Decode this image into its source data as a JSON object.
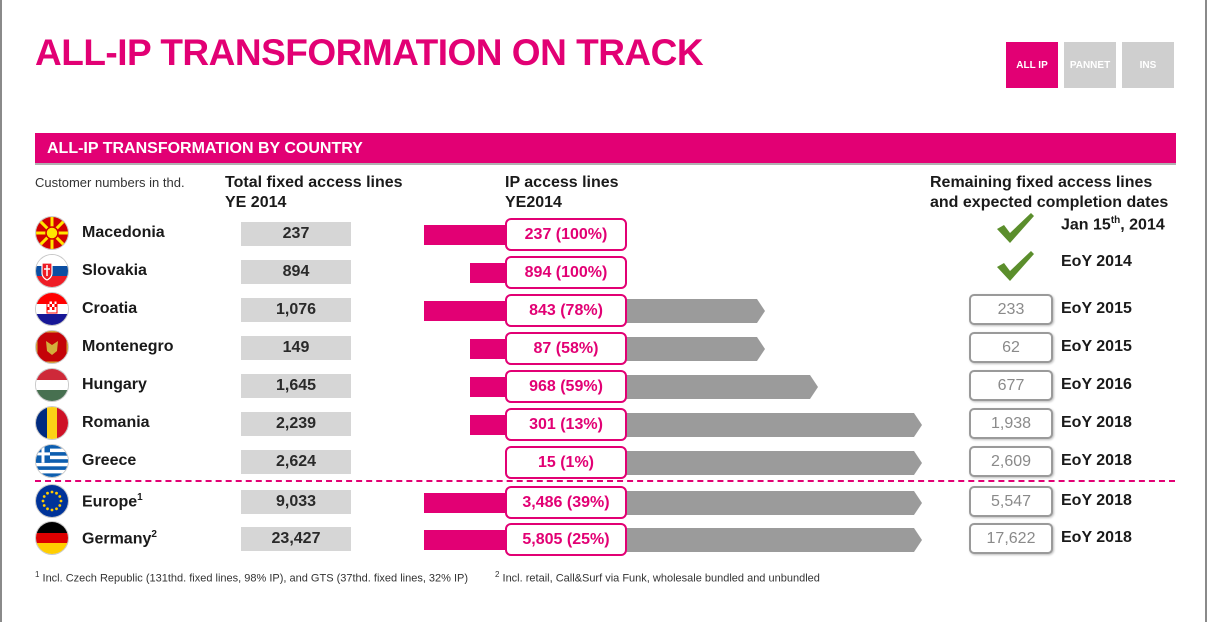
{
  "page_title": "ALL-IP TRANSFORMATION ON TRACK",
  "nav": {
    "tabs": [
      {
        "label": "ALL IP",
        "active": true
      },
      {
        "label": "PANNET",
        "active": false
      },
      {
        "label": "INS",
        "active": false
      }
    ]
  },
  "colors": {
    "accent": "#e20074",
    "inactive_tab": "#cfcfcf",
    "bar_gray": "#9b9b9b",
    "check_green": "#5b8e2c"
  },
  "section_title": "ALL-IP TRANSFORMATION BY COUNTRY",
  "headers": {
    "units": "Customer numbers in thd.",
    "total": "Total fixed access lines",
    "total_sub": "YE 2014",
    "ip": "IP access lines",
    "ip_sub": "YE2014",
    "remaining": "Remaining fixed access lines",
    "remaining_sub": "and expected completion dates"
  },
  "rows": [
    {
      "country": "Macedonia",
      "sup": "",
      "flag": "macedonia-flag-icon",
      "total": "237",
      "ip": "237 (100%)",
      "ip_pct": 100,
      "remaining": "",
      "date_main": "Jan 15",
      "date_sup": "th",
      "date_tail": ", 2014",
      "done": true
    },
    {
      "country": "Slovakia",
      "sup": "",
      "flag": "slovakia-flag-icon",
      "total": "894",
      "ip": "894 (100%)",
      "ip_pct": 100,
      "remaining": "",
      "date_main": "EoY 2014",
      "date_sup": "",
      "date_tail": "",
      "done": true
    },
    {
      "country": "Croatia",
      "sup": "",
      "flag": "croatia-flag-icon",
      "total": "1,076",
      "ip": "843 (78%)",
      "ip_pct": 78,
      "remaining": "233",
      "date_main": "EoY 2015",
      "date_sup": "",
      "date_tail": "",
      "done": false
    },
    {
      "country": "Montenegro",
      "sup": "",
      "flag": "montenegro-flag-icon",
      "total": "149",
      "ip": "87 (58%)",
      "ip_pct": 58,
      "remaining": "62",
      "date_main": "EoY 2015",
      "date_sup": "",
      "date_tail": "",
      "done": false
    },
    {
      "country": "Hungary",
      "sup": "",
      "flag": "hungary-flag-icon",
      "total": "1,645",
      "ip": "968 (59%)",
      "ip_pct": 59,
      "remaining": "677",
      "date_main": "EoY 2016",
      "date_sup": "",
      "date_tail": "",
      "done": false
    },
    {
      "country": "Romania",
      "sup": "",
      "flag": "romania-flag-icon",
      "total": "2,239",
      "ip": "301 (13%)",
      "ip_pct": 13,
      "remaining": "1,938",
      "date_main": "EoY 2018",
      "date_sup": "",
      "date_tail": "",
      "done": false
    },
    {
      "country": "Greece",
      "sup": "",
      "flag": "greece-flag-icon",
      "total": "2,624",
      "ip": "15 (1%)",
      "ip_pct": 1,
      "remaining": "2,609",
      "date_main": "EoY 2018",
      "date_sup": "",
      "date_tail": "",
      "done": false
    },
    {
      "country": "Europe",
      "sup": "1",
      "flag": "eu-flag-icon",
      "total": "9,033",
      "ip": "3,486 (39%)",
      "ip_pct": 39,
      "remaining": "5,547",
      "date_main": "EoY 2018",
      "date_sup": "",
      "date_tail": "",
      "done": false
    },
    {
      "country": "Germany",
      "sup": "2",
      "flag": "germany-flag-icon",
      "total": "23,427",
      "ip": "5,805 (25%)",
      "ip_pct": 25,
      "remaining": "17,622",
      "date_main": "EoY 2018",
      "date_sup": "",
      "date_tail": "",
      "done": false
    }
  ],
  "footnotes": [
    {
      "num": "1",
      "text": " Incl. Czech Republic (131thd. fixed lines, 98% IP), and GTS (37thd. fixed lines, 32% IP)"
    },
    {
      "num": "2",
      "text": " Incl. retail, Call&Surf via Funk, wholesale bundled and unbundled"
    }
  ],
  "chart_data": {
    "type": "table",
    "title": "ALL-IP TRANSFORMATION BY COUNTRY",
    "columns": [
      "Country",
      "Total fixed access lines YE 2014",
      "IP access lines YE2014",
      "IP share %",
      "Remaining fixed access lines",
      "Expected completion date"
    ],
    "rows": [
      [
        "Macedonia",
        237,
        237,
        100,
        null,
        "Jan 15th, 2014"
      ],
      [
        "Slovakia",
        894,
        894,
        100,
        null,
        "EoY 2014"
      ],
      [
        "Croatia",
        1076,
        843,
        78,
        233,
        "EoY 2015"
      ],
      [
        "Montenegro",
        149,
        87,
        58,
        62,
        "EoY 2015"
      ],
      [
        "Hungary",
        1645,
        968,
        59,
        677,
        "EoY 2016"
      ],
      [
        "Romania",
        2239,
        301,
        13,
        1938,
        "EoY 2018"
      ],
      [
        "Greece",
        2624,
        15,
        1,
        2609,
        "EoY 2018"
      ],
      [
        "Europe",
        9033,
        3486,
        39,
        5547,
        "EoY 2018"
      ],
      [
        "Germany",
        23427,
        5805,
        25,
        17622,
        "EoY 2018"
      ]
    ],
    "units": "Customer numbers in thd."
  }
}
